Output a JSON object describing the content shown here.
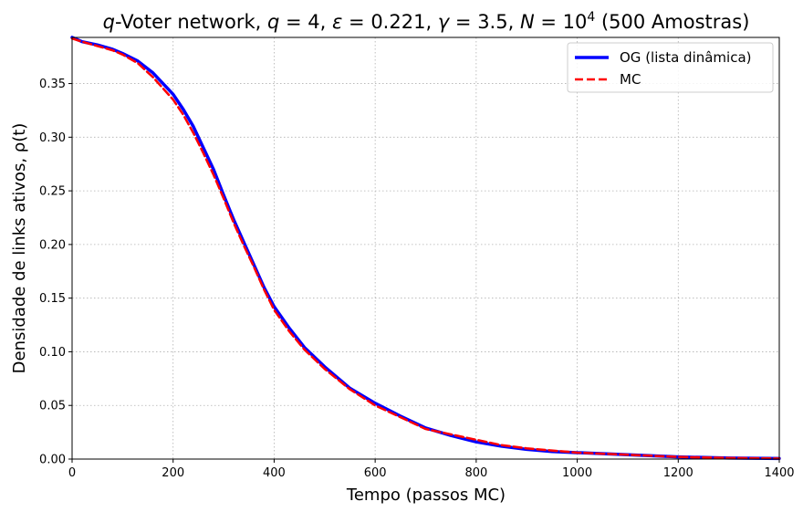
{
  "chart_data": {
    "type": "line",
    "title": {
      "q_label": "q",
      "prefix_after_q": "-Voter network, ",
      "params": [
        {
          "sym": "q",
          "val": "4"
        },
        {
          "sym": "ε",
          "val": "0.221"
        },
        {
          "sym": "γ",
          "val": "3.5"
        }
      ],
      "n_sym": "N",
      "n_base": "10",
      "n_exp": "4",
      "suffix": " (500 Amostras)"
    },
    "xlabel": "Tempo (passos MC)",
    "ylabel": "Densidade de links ativos, ρ(t)",
    "xlim": [
      0,
      1400
    ],
    "ylim": [
      0,
      0.393
    ],
    "xticks": [
      0,
      200,
      400,
      600,
      800,
      1000,
      1200,
      1400
    ],
    "yticks": [
      0.0,
      0.05,
      0.1,
      0.15,
      0.2,
      0.25,
      0.3,
      0.35
    ],
    "xtick_labels": [
      "0",
      "200",
      "400",
      "600",
      "800",
      "1000",
      "1200",
      "1400"
    ],
    "ytick_labels": [
      "0.00",
      "0.05",
      "0.10",
      "0.15",
      "0.20",
      "0.25",
      "0.30",
      "0.35"
    ],
    "grid": true,
    "legend_position": "top-right",
    "series": [
      {
        "name": "OG (lista dinâmica)",
        "color": "#0000ff",
        "style": "solid",
        "x": [
          0,
          20,
          50,
          80,
          100,
          130,
          160,
          200,
          220,
          240,
          260,
          280,
          300,
          320,
          340,
          360,
          380,
          400,
          430,
          460,
          500,
          550,
          600,
          650,
          700,
          750,
          800,
          850,
          900,
          950,
          1000,
          1100,
          1200,
          1300,
          1400
        ],
        "y": [
          0.393,
          0.389,
          0.386,
          0.382,
          0.378,
          0.371,
          0.36,
          0.34,
          0.326,
          0.31,
          0.29,
          0.27,
          0.246,
          0.223,
          0.202,
          0.181,
          0.16,
          0.142,
          0.122,
          0.104,
          0.086,
          0.066,
          0.052,
          0.04,
          0.029,
          0.022,
          0.016,
          0.012,
          0.009,
          0.007,
          0.006,
          0.004,
          0.002,
          0.001,
          0.0005
        ]
      },
      {
        "name": "MC",
        "color": "#ff0000",
        "style": "dashed",
        "x": [
          0,
          20,
          50,
          80,
          100,
          130,
          160,
          200,
          220,
          240,
          260,
          280,
          300,
          320,
          340,
          360,
          380,
          400,
          430,
          460,
          500,
          550,
          600,
          650,
          700,
          750,
          800,
          850,
          900,
          950,
          1000,
          1100,
          1200,
          1300,
          1400
        ],
        "y": [
          0.392,
          0.389,
          0.385,
          0.381,
          0.377,
          0.369,
          0.356,
          0.335,
          0.321,
          0.304,
          0.285,
          0.265,
          0.243,
          0.22,
          0.199,
          0.179,
          0.158,
          0.139,
          0.119,
          0.102,
          0.084,
          0.065,
          0.05,
          0.039,
          0.028,
          0.023,
          0.018,
          0.013,
          0.01,
          0.008,
          0.006,
          0.004,
          0.002,
          0.001,
          0.0005
        ]
      }
    ]
  }
}
